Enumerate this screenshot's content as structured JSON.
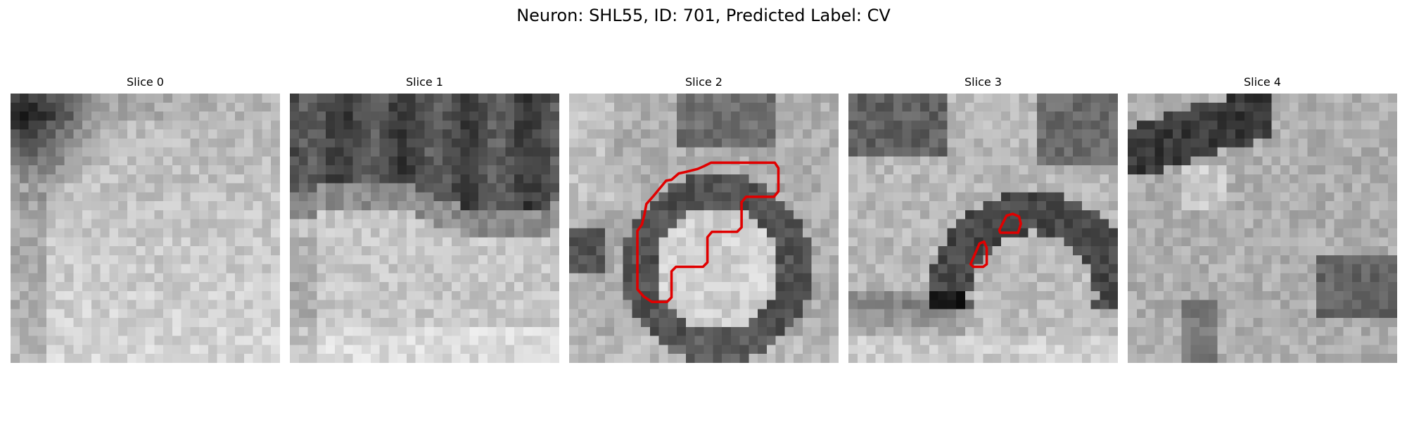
{
  "figure": {
    "title": "Neuron: SHL55, ID: 701, Predicted Label: CV"
  },
  "panels": [
    {
      "title": "Slice 0",
      "pattern": "dark-top-left"
    },
    {
      "title": "Slice 1",
      "pattern": "dark-top-band"
    },
    {
      "title": "Slice 2",
      "pattern": "ring",
      "has_contour": true
    },
    {
      "title": "Slice 3",
      "pattern": "arc",
      "has_contour": true
    },
    {
      "title": "Slice 4",
      "pattern": "diagonal-band"
    }
  ],
  "colors": {
    "contour": "#e00000",
    "background": "#ffffff"
  }
}
